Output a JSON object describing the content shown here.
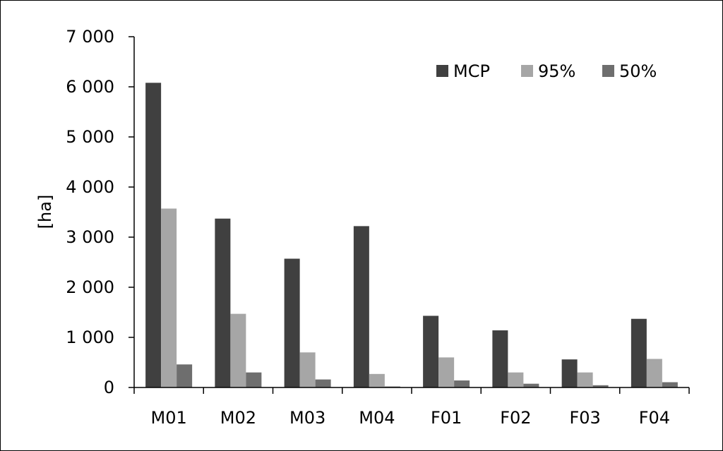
{
  "chart_data": {
    "type": "bar",
    "title": "",
    "xlabel": "",
    "ylabel": "[ha]",
    "ylim": [
      0,
      7000
    ],
    "yticks": [
      0,
      1000,
      2000,
      3000,
      4000,
      5000,
      6000,
      7000
    ],
    "ytick_labels": [
      "0",
      "1 000",
      "2 000",
      "3 000",
      "4 000",
      "5 000",
      "6 000",
      "7 000"
    ],
    "categories": [
      "M01",
      "M02",
      "M03",
      "M04",
      "F01",
      "F02",
      "F03",
      "F04"
    ],
    "series": [
      {
        "name": "MCP",
        "color": "#404040",
        "values": [
          6080,
          3370,
          2570,
          3220,
          1430,
          1140,
          560,
          1370
        ]
      },
      {
        "name": "95%",
        "color": "#a6a6a6",
        "values": [
          3570,
          1470,
          700,
          270,
          600,
          300,
          300,
          570
        ]
      },
      {
        "name": "50%",
        "color": "#6e6e6e",
        "values": [
          460,
          300,
          160,
          20,
          140,
          75,
          45,
          105
        ]
      }
    ],
    "grid": false,
    "legend_position": "top-right"
  }
}
